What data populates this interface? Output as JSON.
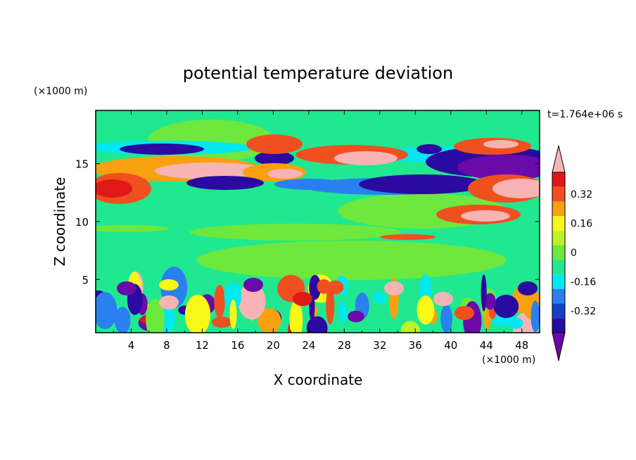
{
  "chart_data": {
    "type": "heatmap",
    "title": "potential temperature deviation",
    "xlabel": "X coordinate",
    "ylabel": "Z coordinate",
    "x_unit": "(×1000 m)",
    "y_unit": "(×1000 m)",
    "time_label": "t=1.764e+06 s",
    "xlim": [
      0,
      50
    ],
    "ylim": [
      0.4,
      19.6
    ],
    "x_ticks": [
      4,
      8,
      12,
      16,
      20,
      24,
      28,
      32,
      36,
      40,
      44,
      48
    ],
    "y_ticks": [
      5,
      10,
      15
    ],
    "colorbar": {
      "tick_labels": [
        "0.32",
        "0.16",
        "0",
        "-0.16",
        "-0.32"
      ],
      "tick_values": [
        0.32,
        0.16,
        0,
        -0.16,
        -0.32
      ],
      "levels": [
        -0.4,
        -0.32,
        -0.24,
        -0.16,
        -0.08,
        0,
        0.08,
        0.16,
        0.24,
        0.32,
        0.4
      ],
      "colors": [
        "#6a0aa8",
        "#2a0aa0",
        "#1440c8",
        "#2a80f0",
        "#00e8f0",
        "#20e890",
        "#6ee83c",
        "#c0f028",
        "#f8f818",
        "#f8a010",
        "#f05020",
        "#e01818",
        "#f8b4b4"
      ]
    }
  }
}
